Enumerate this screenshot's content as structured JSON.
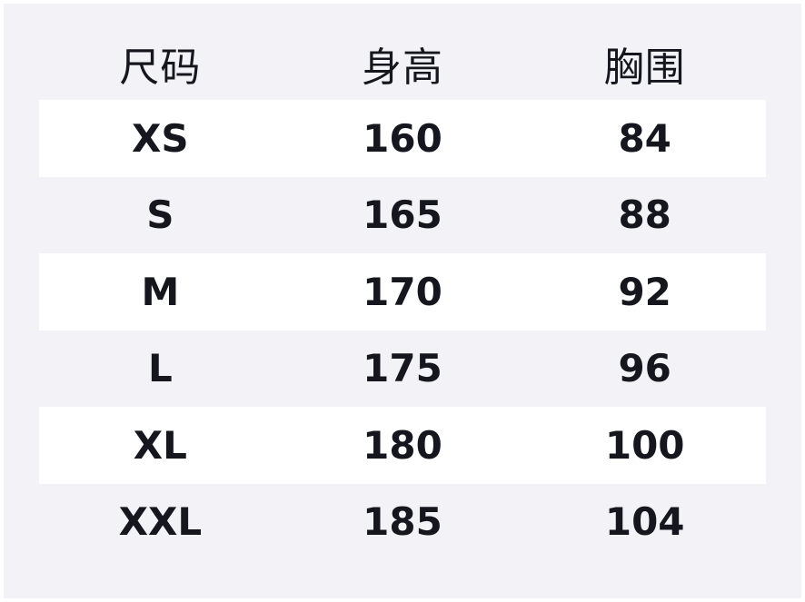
{
  "colors": {
    "frame": "#ffffff",
    "board_background": "#f2f2f7",
    "row_highlight": "#ffffff",
    "text": "#16161e"
  },
  "table": {
    "headers": [
      "尺码",
      "身高",
      "胸围"
    ],
    "rows": [
      [
        "XS",
        "160",
        "84"
      ],
      [
        "S",
        "165",
        "88"
      ],
      [
        "M",
        "170",
        "92"
      ],
      [
        "L",
        "175",
        "96"
      ],
      [
        "XL",
        "180",
        "100"
      ],
      [
        "XXL",
        "185",
        "104"
      ]
    ]
  },
  "chart_data": {
    "type": "table",
    "title": "",
    "columns": [
      "尺码",
      "身高",
      "胸围"
    ],
    "rows": [
      [
        "XS",
        160,
        84
      ],
      [
        "S",
        165,
        88
      ],
      [
        "M",
        170,
        92
      ],
      [
        "L",
        175,
        96
      ],
      [
        "XL",
        180,
        100
      ],
      [
        "XXL",
        185,
        104
      ]
    ],
    "layout_hints": {
      "striped_rows": "white highlight bands on rows XS, M, XL",
      "background": "#f2f2f7",
      "columns_alignment": "center",
      "header_weight": "normal",
      "data_weight": "bold"
    }
  }
}
